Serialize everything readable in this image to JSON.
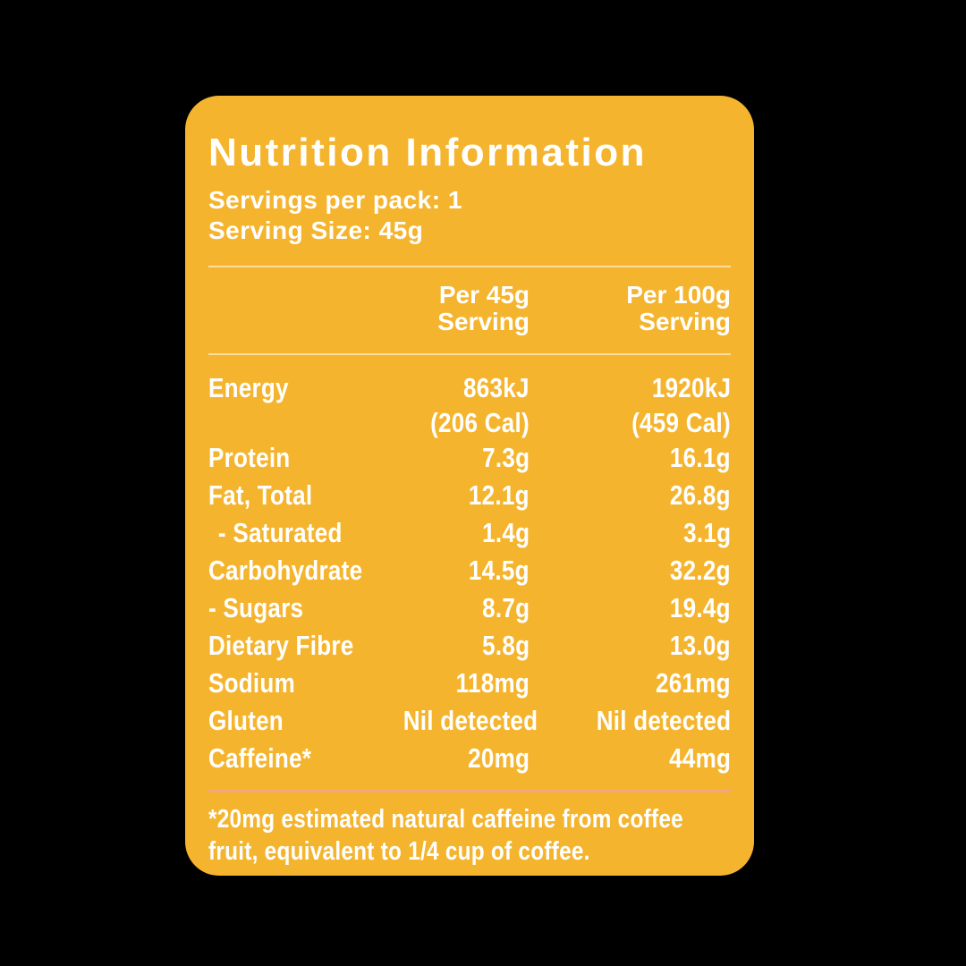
{
  "panel": {
    "title": "Nutrition Information",
    "servings_per_pack": "Servings per pack: 1",
    "serving_size": "Serving Size: 45g",
    "columns": {
      "per_serving": "Per 45g\nServing",
      "per_100g": "Per 100g\nServing"
    },
    "footnote": "*20mg estimated natural caffeine from coffee\nfruit, equivalent to 1/4 cup of coffee.",
    "colors": {
      "card_background": "#F5B42D",
      "text": "#FFFFFF",
      "divider": "rgba(255,255,255,0.55)",
      "footnote_divider": "#F2A87B"
    }
  },
  "table": {
    "rows": [
      {
        "label": "Energy",
        "per_serving": "863kJ",
        "per_100g": "1920kJ"
      },
      {
        "label": "",
        "per_serving": "(206 Cal)",
        "per_100g": "(459 Cal)"
      },
      {
        "label": "Protein",
        "per_serving": "7.3g",
        "per_100g": "16.1g"
      },
      {
        "label": "Fat, Total",
        "per_serving": "12.1g",
        "per_100g": "26.8g"
      },
      {
        "label": "- Saturated",
        "per_serving": "1.4g",
        "per_100g": "3.1g"
      },
      {
        "label": "Carbohydrate",
        "per_serving": "14.5g",
        "per_100g": "32.2g"
      },
      {
        "label": "- Sugars",
        "per_serving": "8.7g",
        "per_100g": "19.4g"
      },
      {
        "label": "Dietary Fibre",
        "per_serving": "5.8g",
        "per_100g": "13.0g"
      },
      {
        "label": "Sodium",
        "per_serving": "118mg",
        "per_100g": "261mg"
      },
      {
        "label": "Gluten",
        "per_serving": "Nil detected",
        "per_100g": "Nil detected"
      },
      {
        "label": "Caffeine*",
        "per_serving": "20mg",
        "per_100g": "44mg"
      }
    ]
  }
}
